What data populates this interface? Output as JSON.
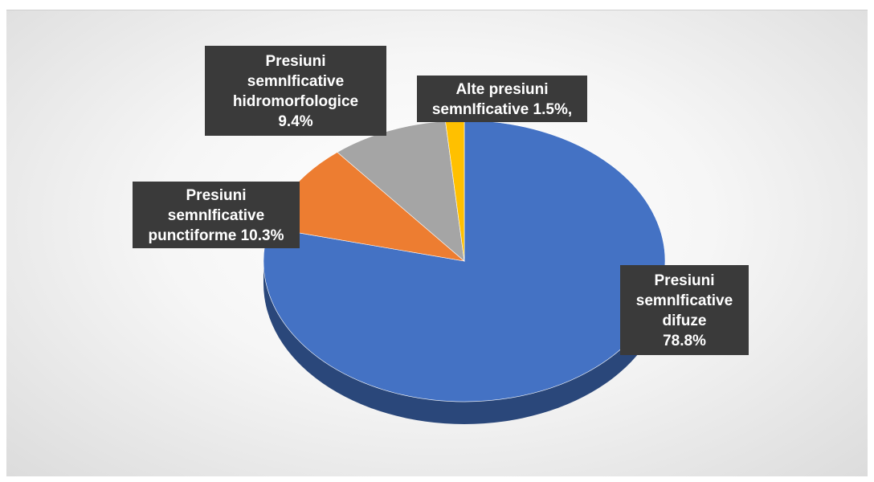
{
  "chart_data": {
    "type": "pie",
    "title": "",
    "slices": [
      {
        "label": "Presiuni semnIficative difuze",
        "value": 78.8,
        "value_label": "78.8%",
        "color": "#4472c4"
      },
      {
        "label": "Presiuni semnIficative punctiforme",
        "value": 10.3,
        "value_label": "10.3%",
        "color": "#ed7d31"
      },
      {
        "label": "Presiuni semnIficative hidromorfologice",
        "value": 9.4,
        "value_label": "9.4%",
        "color": "#a5a5a5"
      },
      {
        "label": "Alte presiuni semnIficative",
        "value": 1.5,
        "value_label": "1.5%,",
        "color": "#ffc000"
      }
    ],
    "data_labels": [
      {
        "lines": [
          "Presiuni",
          "semnIficative",
          "difuze",
          "78.8%"
        ]
      },
      {
        "lines": [
          "Presiuni",
          "semnIficative",
          "punctiforme 10.3%"
        ]
      },
      {
        "lines": [
          "Presiuni",
          "semnIficative",
          "hidromorfologice",
          "9.4%"
        ]
      },
      {
        "lines": [
          "Alte presiuni",
          "semnIficative 1.5%,"
        ]
      }
    ],
    "style": "3d",
    "legend": "none"
  }
}
